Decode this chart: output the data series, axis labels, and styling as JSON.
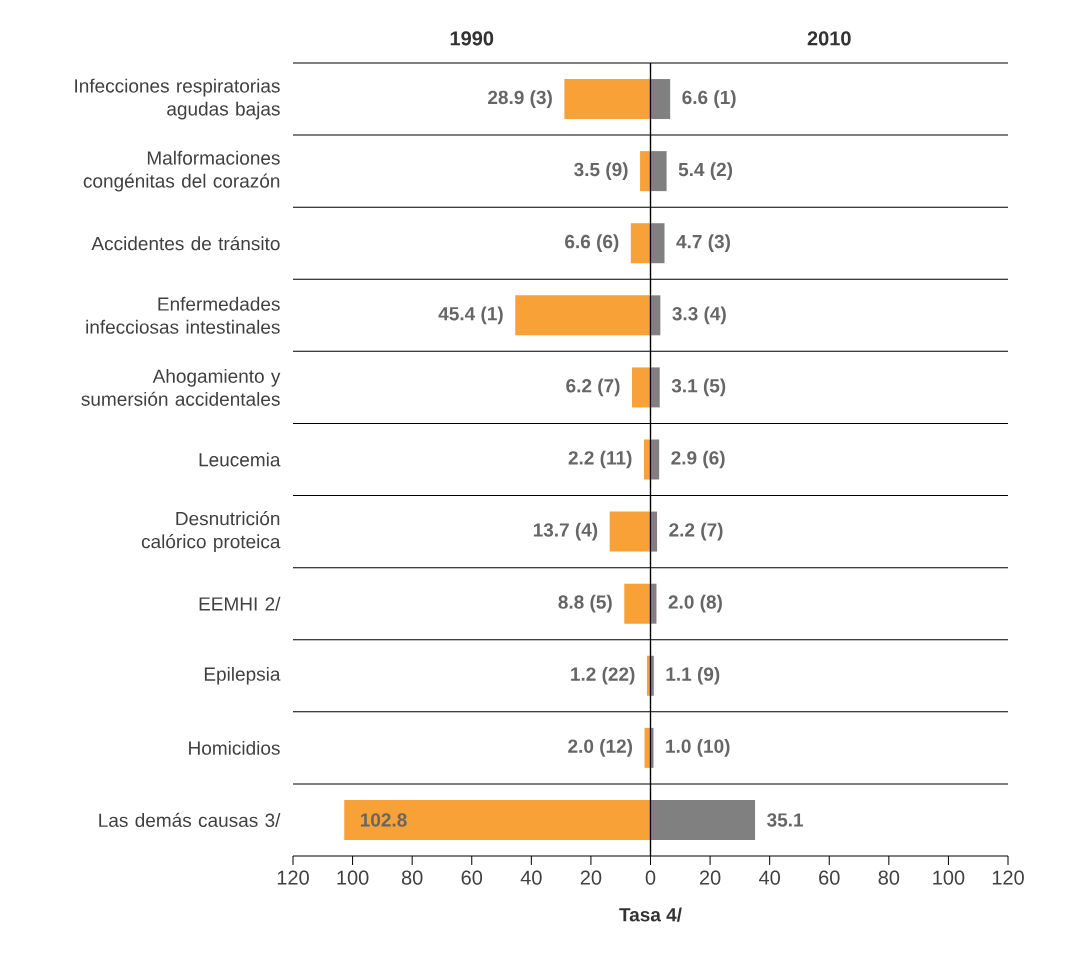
{
  "chart_data": [
    {
      "type": "bar",
      "orientation": "horizontal",
      "title": "1990",
      "categories": [
        "Infecciones respiratorias agudas bajas",
        "Malformaciones congénitas del corazón",
        "Accidentes de tránsito",
        "Enfermedades infecciosas intestinales",
        "Ahogamiento y sumersión accidentales",
        "Leucemia",
        "Desnutrición calórico proteica",
        "EEMHI 2/",
        "Epilepsia",
        "Homicidios",
        "Las demás causas 3/"
      ],
      "color": "#f7a136",
      "values": [
        28.9,
        3.5,
        6.6,
        45.4,
        6.2,
        2.2,
        13.7,
        8.8,
        1.2,
        2.0,
        102.8
      ],
      "value_labels": [
        "28.9 (3)",
        "3.5 (9)",
        "6.6 (6)",
        "45.4 (1)",
        "6.2 (7)",
        "2.2 (11)",
        "13.7 (4)",
        "8.8 (5)",
        "1.2 (22)",
        "2.0 (12)",
        "102.8"
      ],
      "xlim": [
        120,
        0
      ],
      "xticks": [
        120,
        100,
        80,
        60,
        40,
        20,
        0
      ],
      "grid": "y"
    },
    {
      "type": "bar",
      "orientation": "horizontal",
      "title": "2010",
      "xlabel": "Tasa 4/",
      "categories": [
        null,
        null,
        null,
        null,
        null,
        null,
        null,
        null,
        null,
        null,
        null
      ],
      "color": "#808080",
      "values": [
        6.6,
        5.4,
        4.7,
        3.3,
        3.1,
        2.9,
        2.2,
        2.0,
        1.1,
        1.0,
        35.1
      ],
      "value_labels": [
        "6.6 (1)",
        "5.4 (2)",
        "4.7 (3)",
        "3.3 (4)",
        "3.1 (5)",
        "2.9 (6)",
        "2.2 (7)",
        "2.0 (8)",
        "1.1 (9)",
        "1.0 (10)",
        "35.1"
      ],
      "xlim": [
        0,
        120
      ],
      "xticks": [
        {
          "value": 0,
          "label": null
        },
        20,
        40,
        60,
        80,
        100,
        120
      ],
      "grid": "y",
      "tick_labels": "x"
    }
  ]
}
